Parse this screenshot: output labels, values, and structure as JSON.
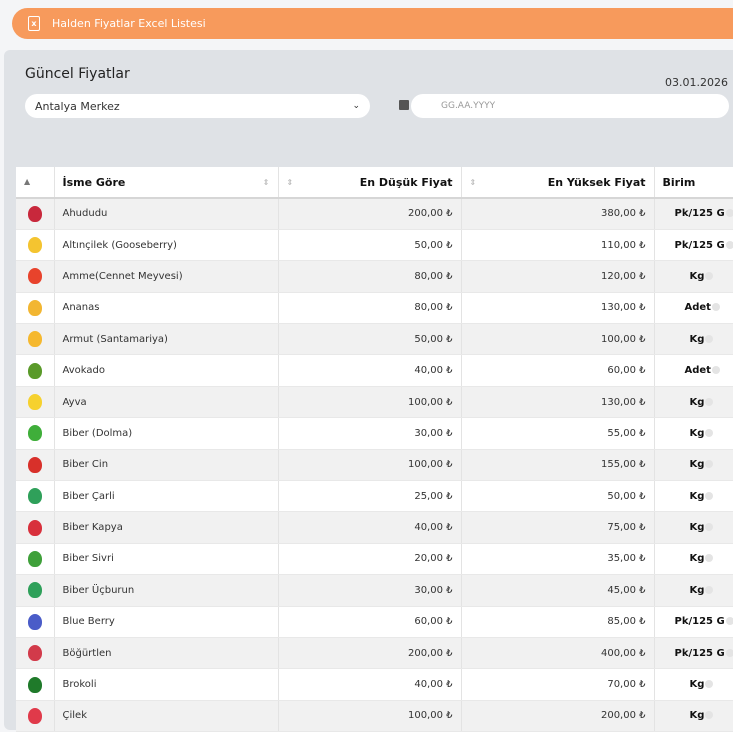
{
  "banner": {
    "label": "Halden Fiyatlar Excel Listesi",
    "icon": "excel-file-icon",
    "color": "#f79a5c"
  },
  "header": {
    "title": "Güncel Fiyatlar",
    "date": "03.01.2026",
    "location": "Antalya Merkez",
    "date_placeholder": "GG.AA.YYYY"
  },
  "table": {
    "columns": [
      "İsme Göre",
      "En Düşük Fiyat",
      "En Yüksek Fiyat",
      "Birim"
    ],
    "rows": [
      {
        "name": "Ahududu",
        "min": "200,00 ₺",
        "max": "380,00 ₺",
        "unit": "Pk/125 G",
        "icon": "raspberry-icon",
        "color": "#c8283c"
      },
      {
        "name": "Altınçilek (Gooseberry)",
        "min": "50,00 ₺",
        "max": "110,00 ₺",
        "unit": "Pk/125 G",
        "icon": "gooseberry-icon",
        "color": "#f4c430"
      },
      {
        "name": "Amme(Cennet Meyvesi)",
        "min": "80,00 ₺",
        "max": "120,00 ₺",
        "unit": "Kg",
        "icon": "persimmon-icon",
        "color": "#e8432c"
      },
      {
        "name": "Ananas",
        "min": "80,00 ₺",
        "max": "130,00 ₺",
        "unit": "Adet",
        "icon": "pineapple-icon",
        "color": "#f2b632"
      },
      {
        "name": "Armut (Santamariya)",
        "min": "50,00 ₺",
        "max": "100,00 ₺",
        "unit": "Kg",
        "icon": "pear-icon",
        "color": "#f5b82e"
      },
      {
        "name": "Avokado",
        "min": "40,00 ₺",
        "max": "60,00 ₺",
        "unit": "Adet",
        "icon": "avocado-icon",
        "color": "#5a9a2a"
      },
      {
        "name": "Ayva",
        "min": "100,00 ₺",
        "max": "130,00 ₺",
        "unit": "Kg",
        "icon": "quince-icon",
        "color": "#f6d12e"
      },
      {
        "name": "Biber (Dolma)",
        "min": "30,00 ₺",
        "max": "55,00 ₺",
        "unit": "Kg",
        "icon": "bell-pepper-icon",
        "color": "#3fae3a"
      },
      {
        "name": "Biber Cin",
        "min": "100,00 ₺",
        "max": "155,00 ₺",
        "unit": "Kg",
        "icon": "chili-pepper-icon",
        "color": "#d8302a"
      },
      {
        "name": "Biber Çarli",
        "min": "25,00 ₺",
        "max": "50,00 ₺",
        "unit": "Kg",
        "icon": "green-pepper-icon",
        "color": "#2fa05a"
      },
      {
        "name": "Biber Kapya",
        "min": "40,00 ₺",
        "max": "75,00 ₺",
        "unit": "Kg",
        "icon": "red-pepper-icon",
        "color": "#d8303c"
      },
      {
        "name": "Biber Sivri",
        "min": "20,00 ₺",
        "max": "35,00 ₺",
        "unit": "Kg",
        "icon": "sivri-pepper-icon",
        "color": "#3fa03a"
      },
      {
        "name": "Biber Üçburun",
        "min": "30,00 ₺",
        "max": "45,00 ₺",
        "unit": "Kg",
        "icon": "green-pepper-icon",
        "color": "#2fa05a"
      },
      {
        "name": "Blue Berry",
        "min": "60,00 ₺",
        "max": "85,00 ₺",
        "unit": "Pk/125 G",
        "icon": "blueberry-icon",
        "color": "#4a5cc8"
      },
      {
        "name": "Böğürtlen",
        "min": "200,00 ₺",
        "max": "400,00 ₺",
        "unit": "Pk/125 G",
        "icon": "blackberry-icon",
        "color": "#d23a4a"
      },
      {
        "name": "Brokoli",
        "min": "40,00 ₺",
        "max": "70,00 ₺",
        "unit": "Kg",
        "icon": "broccoli-icon",
        "color": "#1f7a2a"
      },
      {
        "name": "Çilek",
        "min": "100,00 ₺",
        "max": "200,00 ₺",
        "unit": "Kg",
        "icon": "strawberry-icon",
        "color": "#e03a4a"
      }
    ]
  }
}
